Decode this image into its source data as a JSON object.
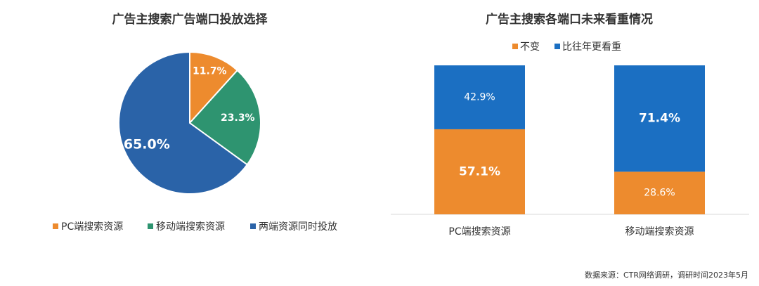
{
  "chart_data": [
    {
      "type": "pie",
      "title": "广告主搜索广告端口投放选择",
      "categories": [
        "PC端搜索资源",
        "移动端搜索资源",
        "两端资源同时投放"
      ],
      "values": [
        11.7,
        23.3,
        65.0
      ],
      "value_labels": [
        "11.7%",
        "23.3%",
        "65.0%"
      ],
      "colors": [
        "#ed8b2e",
        "#2e9470",
        "#2a63a8"
      ],
      "legend": "bottom"
    },
    {
      "type": "bar",
      "stacked": true,
      "title": "广告主搜索各端口未来看重情况",
      "categories": [
        "PC端搜索资源",
        "移动端搜索资源"
      ],
      "series": [
        {
          "name": "不变",
          "color": "#ed8b2e",
          "values": [
            57.1,
            28.6
          ],
          "value_labels": [
            "57.1%",
            "28.6%"
          ]
        },
        {
          "name": "比往年更看重",
          "color": "#1b6fc2",
          "values": [
            42.9,
            71.4
          ],
          "value_labels": [
            "42.9%",
            "71.4%"
          ]
        }
      ],
      "ylim": [
        0,
        100
      ],
      "legend": "top"
    }
  ],
  "source": "数据来源：CTR网络调研，调研时间2023年5月"
}
